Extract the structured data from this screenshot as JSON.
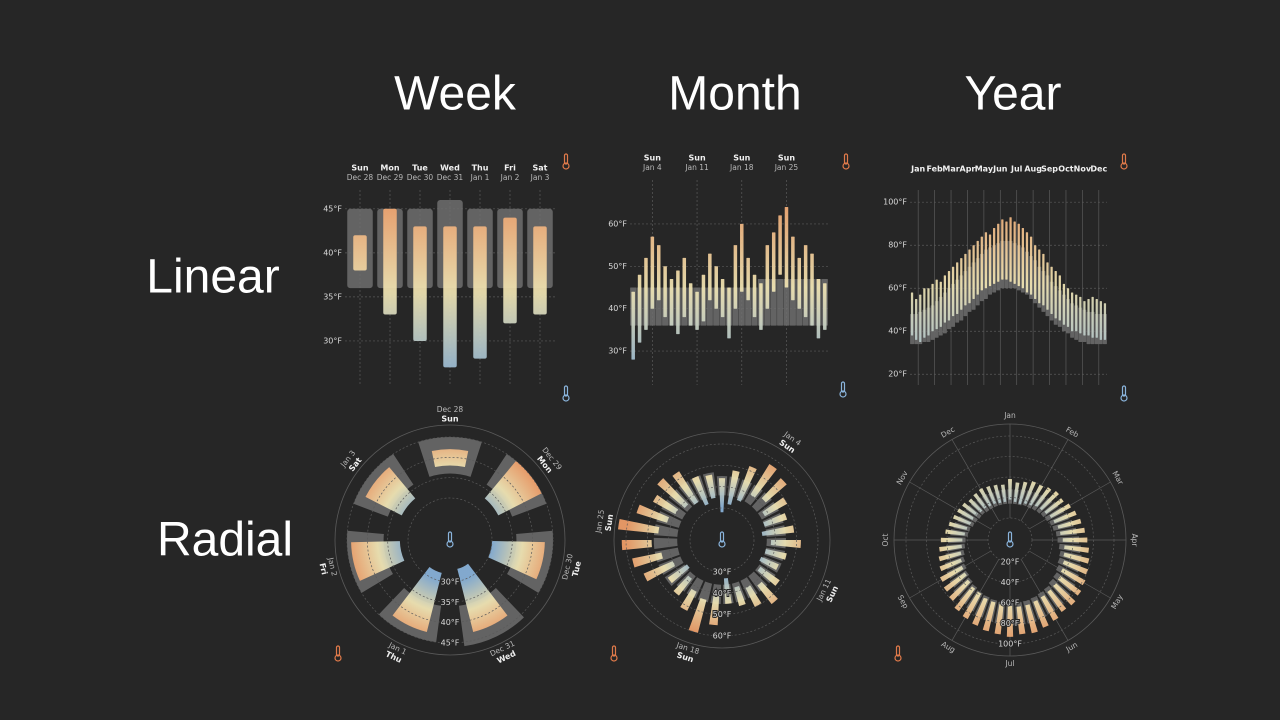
{
  "columns": [
    "Week",
    "Month",
    "Year"
  ],
  "rows": [
    "Linear",
    "Radial"
  ],
  "palette": {
    "normal": "#6e6e6e",
    "cold": "#8ab4dc",
    "mild": "#f2e6b4",
    "warm": "#f2a06a",
    "grid": "#5a5a5a"
  },
  "chart_data": [
    {
      "type": "bar",
      "weekdays": [
        "Sun",
        "Mon",
        "Tue",
        "Wed",
        "Thu",
        "Fri",
        "Sat"
      ],
      "categories": [
        "Dec 28",
        "Dec 29",
        "Dec 30",
        "Dec 31",
        "Jan 1",
        "Jan 2",
        "Jan 3"
      ],
      "low": [
        38,
        33,
        30,
        27,
        28,
        32,
        33
      ],
      "high": [
        42,
        45,
        43,
        43,
        43,
        44,
        43
      ],
      "normal_low": [
        36,
        36,
        36,
        36,
        36,
        36,
        36
      ],
      "normal_high": [
        45,
        45,
        45,
        46,
        45,
        45,
        45
      ],
      "ylim": [
        25,
        46
      ],
      "yticks": [
        {
          "value": 30,
          "label": "30°F"
        },
        {
          "value": 35,
          "label": "35°F"
        },
        {
          "value": 40,
          "label": "40°F"
        },
        {
          "value": 45,
          "label": "45°F"
        }
      ]
    },
    {
      "type": "bar",
      "weekdays": [
        null,
        null,
        null,
        "Sun",
        null,
        null,
        null,
        null,
        null,
        null,
        "Sun",
        null,
        null,
        null,
        null,
        null,
        null,
        "Sun",
        null,
        null,
        null,
        null,
        null,
        null,
        "Sun",
        null,
        null,
        null,
        null,
        null,
        null
      ],
      "categories": [
        null,
        null,
        null,
        "Jan 4",
        null,
        null,
        null,
        null,
        null,
        null,
        "Jan 11",
        null,
        null,
        null,
        null,
        null,
        null,
        "Jan 18",
        null,
        null,
        null,
        null,
        null,
        null,
        "Jan 25",
        null,
        null,
        null,
        null,
        null,
        null
      ],
      "low": [
        28,
        32,
        35,
        40,
        42,
        38,
        36,
        34,
        38,
        36,
        35,
        37,
        42,
        40,
        38,
        33,
        40,
        44,
        42,
        38,
        35,
        40,
        44,
        48,
        45,
        42,
        40,
        38,
        36,
        33,
        35
      ],
      "high": [
        44,
        48,
        52,
        57,
        55,
        50,
        47,
        49,
        52,
        46,
        44,
        48,
        53,
        50,
        47,
        45,
        55,
        60,
        52,
        48,
        46,
        55,
        58,
        62,
        64,
        57,
        52,
        55,
        53,
        47,
        46
      ],
      "normal_low": [
        36,
        36,
        36,
        36,
        36,
        36,
        36,
        36,
        36,
        36,
        36,
        36,
        36,
        36,
        36,
        36,
        36,
        36,
        36,
        36,
        36,
        36,
        36,
        36,
        36,
        36,
        36,
        36,
        36,
        36,
        36
      ],
      "normal_high": [
        45,
        45,
        45,
        45,
        45,
        45,
        45,
        45,
        45,
        45,
        45,
        45,
        45,
        45,
        45,
        45,
        45,
        45,
        45,
        45,
        47,
        47,
        47,
        47,
        47,
        47,
        47,
        47,
        47,
        47,
        47
      ],
      "ylim": [
        22,
        68
      ],
      "yticks": [
        {
          "value": 30,
          "label": "30°F"
        },
        {
          "value": 40,
          "label": "40°F"
        },
        {
          "value": 50,
          "label": "50°F"
        },
        {
          "value": 60,
          "label": "60°F"
        }
      ]
    },
    {
      "type": "bar",
      "months": [
        "Jan",
        "Feb",
        "Mar",
        "Apr",
        "May",
        "Jun",
        "Jul",
        "Aug",
        "Sep",
        "Oct",
        "Nov",
        "Dec"
      ],
      "low": [
        38,
        36,
        35,
        37,
        38,
        40,
        41,
        42,
        44,
        45,
        47,
        48,
        50,
        52,
        53,
        55,
        57,
        59,
        60,
        61,
        62,
        63,
        64,
        64,
        63,
        62,
        61,
        60,
        58,
        57,
        55,
        53,
        52,
        50,
        48,
        46,
        45,
        43,
        42,
        40,
        40,
        39,
        38,
        38,
        37,
        37,
        36,
        36
      ],
      "high": [
        58,
        55,
        57,
        60,
        60,
        62,
        64,
        63,
        66,
        68,
        70,
        72,
        74,
        76,
        78,
        80,
        82,
        84,
        86,
        85,
        88,
        90,
        92,
        91,
        93,
        91,
        90,
        88,
        86,
        84,
        80,
        78,
        76,
        72,
        70,
        68,
        66,
        62,
        60,
        58,
        57,
        56,
        54,
        55,
        56,
        55,
        54,
        53
      ],
      "normal_low": [
        34,
        34,
        34,
        35,
        35,
        36,
        37,
        38,
        39,
        41,
        42,
        44,
        45,
        47,
        49,
        50,
        52,
        54,
        55,
        57,
        58,
        59,
        60,
        60,
        60,
        60,
        59,
        58,
        57,
        55,
        53,
        51,
        49,
        47,
        45,
        43,
        42,
        40,
        39,
        37,
        36,
        35,
        35,
        34,
        34,
        34,
        34,
        34
      ],
      "normal_high": [
        48,
        48,
        49,
        50,
        51,
        52,
        54,
        56,
        58,
        60,
        62,
        64,
        66,
        68,
        70,
        72,
        74,
        76,
        78,
        79,
        80,
        81,
        82,
        82,
        82,
        81,
        80,
        79,
        77,
        75,
        73,
        70,
        68,
        66,
        63,
        61,
        59,
        57,
        55,
        53,
        52,
        51,
        50,
        49,
        49,
        48,
        48,
        48
      ],
      "ylim": [
        15,
        108
      ],
      "yticks": [
        {
          "value": 20,
          "label": "20°F"
        },
        {
          "value": 40,
          "label": "40°F"
        },
        {
          "value": 60,
          "label": "60°F"
        },
        {
          "value": 80,
          "label": "80°F"
        },
        {
          "value": 100,
          "label": "100°F"
        }
      ]
    },
    {
      "type": "radial",
      "weekdays": [
        "Sun",
        "Mon",
        "Tue",
        "Wed",
        "Thu",
        "Fri",
        "Sat"
      ],
      "categories": [
        "Dec 28",
        "Dec 29",
        "Dec 30",
        "Dec 31",
        "Jan 1",
        "Jan 2",
        "Jan 3"
      ],
      "low": [
        38,
        33,
        30,
        27,
        28,
        32,
        33
      ],
      "high": [
        42,
        45,
        43,
        43,
        43,
        44,
        43
      ],
      "normal_low": [
        36,
        36,
        36,
        36,
        36,
        36,
        36
      ],
      "normal_high": [
        45,
        45,
        45,
        46,
        45,
        45,
        45
      ],
      "ylim": [
        30,
        45
      ],
      "yticks": [
        {
          "value": 30,
          "label": "30°F"
        },
        {
          "value": 35,
          "label": "35°F"
        },
        {
          "value": 40,
          "label": "40°F"
        },
        {
          "value": 45,
          "label": "45°F"
        }
      ]
    },
    {
      "type": "radial",
      "weekdays": [
        null,
        null,
        null,
        "Sun",
        null,
        null,
        null,
        null,
        null,
        null,
        "Sun",
        null,
        null,
        null,
        null,
        null,
        null,
        "Sun",
        null,
        null,
        null,
        null,
        null,
        null,
        "Sun",
        null,
        null,
        null,
        null,
        null,
        null
      ],
      "categories": [
        null,
        null,
        null,
        "Jan 4",
        null,
        null,
        null,
        null,
        null,
        null,
        "Jan 11",
        null,
        null,
        null,
        null,
        null,
        null,
        "Jan 18",
        null,
        null,
        null,
        null,
        null,
        null,
        "Jan 25",
        null,
        null,
        null,
        null,
        null,
        null
      ],
      "low": [
        28,
        32,
        35,
        40,
        42,
        38,
        36,
        34,
        38,
        36,
        35,
        37,
        42,
        40,
        38,
        33,
        40,
        44,
        42,
        38,
        35,
        40,
        44,
        48,
        45,
        42,
        40,
        38,
        36,
        33,
        35
      ],
      "high": [
        44,
        48,
        52,
        57,
        55,
        50,
        47,
        49,
        52,
        46,
        44,
        48,
        53,
        50,
        47,
        45,
        55,
        60,
        52,
        48,
        46,
        55,
        58,
        62,
        64,
        57,
        52,
        55,
        53,
        47,
        46
      ],
      "normal_low": [
        36,
        36,
        36,
        36,
        36,
        36,
        36,
        36,
        36,
        36,
        36,
        36,
        36,
        36,
        36,
        36,
        36,
        36,
        36,
        36,
        36,
        36,
        36,
        36,
        36,
        36,
        36,
        36,
        36,
        36,
        36
      ],
      "normal_high": [
        45,
        45,
        45,
        45,
        45,
        45,
        45,
        45,
        45,
        45,
        45,
        45,
        45,
        45,
        45,
        45,
        45,
        45,
        45,
        45,
        47,
        47,
        47,
        47,
        47,
        47,
        47,
        47,
        47,
        47,
        47
      ],
      "ylim": [
        30,
        60
      ],
      "yticks": [
        {
          "value": 30,
          "label": "30°F"
        },
        {
          "value": 40,
          "label": "40°F"
        },
        {
          "value": 50,
          "label": "50°F"
        },
        {
          "value": 60,
          "label": "60°F"
        }
      ]
    },
    {
      "type": "radial",
      "months": [
        "Jan",
        "Feb",
        "Mar",
        "Apr",
        "May",
        "Jun",
        "Jul",
        "Aug",
        "Sep",
        "Oct",
        "Nov",
        "Dec"
      ],
      "low": [
        38,
        36,
        35,
        37,
        38,
        40,
        41,
        42,
        44,
        45,
        47,
        48,
        50,
        52,
        53,
        55,
        57,
        59,
        60,
        61,
        62,
        63,
        64,
        64,
        63,
        62,
        61,
        60,
        58,
        57,
        55,
        53,
        52,
        50,
        48,
        46,
        45,
        43,
        42,
        40,
        40,
        39,
        38,
        38,
        37,
        37,
        36,
        36
      ],
      "high": [
        58,
        55,
        57,
        60,
        60,
        62,
        64,
        63,
        66,
        68,
        70,
        72,
        74,
        76,
        78,
        80,
        82,
        84,
        86,
        85,
        88,
        90,
        92,
        91,
        93,
        91,
        90,
        88,
        86,
        84,
        80,
        78,
        76,
        72,
        70,
        68,
        66,
        62,
        60,
        58,
        57,
        56,
        54,
        55,
        56,
        55,
        54,
        53
      ],
      "normal_low": [
        34,
        34,
        34,
        35,
        35,
        36,
        37,
        38,
        39,
        41,
        42,
        44,
        45,
        47,
        49,
        50,
        52,
        54,
        55,
        57,
        58,
        59,
        60,
        60,
        60,
        60,
        59,
        58,
        57,
        55,
        53,
        51,
        49,
        47,
        45,
        43,
        42,
        40,
        39,
        37,
        36,
        35,
        35,
        34,
        34,
        34,
        34,
        34
      ],
      "normal_high": [
        48,
        48,
        49,
        50,
        51,
        52,
        54,
        56,
        58,
        60,
        62,
        64,
        66,
        68,
        70,
        72,
        74,
        76,
        78,
        79,
        80,
        81,
        82,
        82,
        82,
        81,
        80,
        79,
        77,
        75,
        73,
        70,
        68,
        66,
        63,
        61,
        59,
        57,
        55,
        53,
        52,
        51,
        50,
        49,
        49,
        48,
        48,
        48
      ],
      "ylim": [
        20,
        100
      ],
      "yticks": [
        {
          "value": 20,
          "label": "20°F"
        },
        {
          "value": 40,
          "label": "40°F"
        },
        {
          "value": 60,
          "label": "60°F"
        },
        {
          "value": 80,
          "label": "80°F"
        },
        {
          "value": 100,
          "label": "100°F"
        }
      ]
    }
  ]
}
